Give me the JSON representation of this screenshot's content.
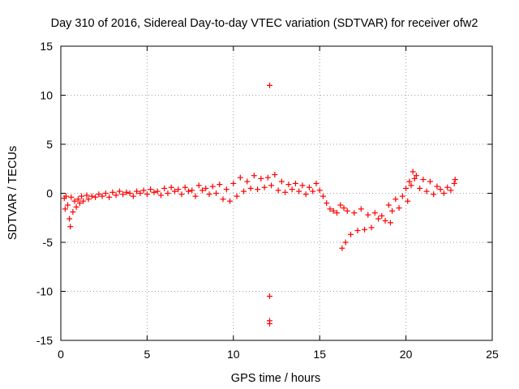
{
  "chart_data": {
    "type": "scatter",
    "title": "Day 310 of 2016, Sidereal Day-to-day VTEC variation (SDTVAR) for receiver ofw2",
    "xlabel": "GPS time / hours",
    "ylabel": "SDTVAR / TECUs",
    "xlim": [
      0,
      25
    ],
    "ylim": [
      -15,
      15
    ],
    "xticks": [
      "0",
      "5",
      "10",
      "15",
      "20",
      "25"
    ],
    "yticks": [
      "-15",
      "-10",
      "-5",
      "0",
      "5",
      "10",
      "15"
    ],
    "grid": true,
    "marker": "+",
    "series": [
      {
        "name": "SDTVAR",
        "color": "#ff0000",
        "points": [
          [
            0.2,
            -0.5
          ],
          [
            0.25,
            -1.6
          ],
          [
            0.3,
            -0.3
          ],
          [
            0.4,
            -1.2
          ],
          [
            0.5,
            -2.6
          ],
          [
            0.55,
            -3.4
          ],
          [
            0.6,
            -0.4
          ],
          [
            0.7,
            -1.9
          ],
          [
            0.8,
            -0.8
          ],
          [
            0.9,
            -1.4
          ],
          [
            1.0,
            -0.6
          ],
          [
            1.1,
            -1.0
          ],
          [
            1.2,
            -0.3
          ],
          [
            1.3,
            -0.8
          ],
          [
            1.5,
            -0.2
          ],
          [
            1.6,
            -0.6
          ],
          [
            1.8,
            -0.3
          ],
          [
            2.0,
            -0.4
          ],
          [
            2.2,
            -0.1
          ],
          [
            2.4,
            -0.3
          ],
          [
            2.6,
            0.0
          ],
          [
            2.8,
            -0.4
          ],
          [
            3.0,
            0.1
          ],
          [
            3.2,
            -0.2
          ],
          [
            3.4,
            0.2
          ],
          [
            3.6,
            -0.1
          ],
          [
            3.8,
            0.1
          ],
          [
            4.0,
            0.0
          ],
          [
            4.2,
            -0.3
          ],
          [
            4.4,
            0.2
          ],
          [
            4.6,
            0.0
          ],
          [
            4.8,
            0.3
          ],
          [
            5.0,
            -0.1
          ],
          [
            5.2,
            0.4
          ],
          [
            5.4,
            0.1
          ],
          [
            5.6,
            0.2
          ],
          [
            5.8,
            -0.2
          ],
          [
            6.0,
            0.5
          ],
          [
            6.2,
            0.0
          ],
          [
            6.4,
            0.6
          ],
          [
            6.6,
            0.2
          ],
          [
            6.8,
            0.4
          ],
          [
            7.0,
            -0.1
          ],
          [
            7.2,
            0.6
          ],
          [
            7.4,
            0.2
          ],
          [
            7.6,
            0.3
          ],
          [
            7.8,
            -0.3
          ],
          [
            8.0,
            0.8
          ],
          [
            8.2,
            0.3
          ],
          [
            8.4,
            0.5
          ],
          [
            8.6,
            -0.1
          ],
          [
            8.8,
            0.7
          ],
          [
            9.0,
            0.0
          ],
          [
            9.2,
            0.9
          ],
          [
            9.4,
            -0.6
          ],
          [
            9.6,
            0.4
          ],
          [
            9.8,
            -0.8
          ],
          [
            10.0,
            1.0
          ],
          [
            10.2,
            -0.3
          ],
          [
            10.4,
            1.6
          ],
          [
            10.6,
            0.2
          ],
          [
            10.8,
            1.2
          ],
          [
            11.0,
            0.5
          ],
          [
            11.2,
            1.8
          ],
          [
            11.4,
            0.4
          ],
          [
            11.6,
            1.5
          ],
          [
            11.8,
            0.6
          ],
          [
            12.0,
            1.6
          ],
          [
            12.1,
            11.0
          ],
          [
            12.1,
            -10.5
          ],
          [
            12.1,
            -13.0
          ],
          [
            12.1,
            -13.3
          ],
          [
            12.2,
            0.8
          ],
          [
            12.4,
            1.9
          ],
          [
            12.6,
            0.3
          ],
          [
            12.8,
            1.2
          ],
          [
            13.0,
            0.1
          ],
          [
            13.2,
            0.9
          ],
          [
            13.4,
            0.4
          ],
          [
            13.6,
            1.0
          ],
          [
            13.8,
            0.2
          ],
          [
            14.0,
            0.8
          ],
          [
            14.2,
            -0.1
          ],
          [
            14.4,
            0.6
          ],
          [
            14.6,
            0.2
          ],
          [
            14.8,
            1.0
          ],
          [
            15.0,
            0.3
          ],
          [
            15.2,
            -0.3
          ],
          [
            15.4,
            -1.0
          ],
          [
            15.6,
            -1.6
          ],
          [
            15.8,
            -1.8
          ],
          [
            16.0,
            -2.0
          ],
          [
            16.2,
            -1.2
          ],
          [
            16.3,
            -5.6
          ],
          [
            16.4,
            -1.5
          ],
          [
            16.5,
            -5.0
          ],
          [
            16.6,
            -1.8
          ],
          [
            16.8,
            -4.2
          ],
          [
            17.0,
            -2.0
          ],
          [
            17.2,
            -3.8
          ],
          [
            17.4,
            -1.6
          ],
          [
            17.6,
            -3.7
          ],
          [
            17.8,
            -2.2
          ],
          [
            18.0,
            -3.5
          ],
          [
            18.2,
            -2.0
          ],
          [
            18.4,
            -2.6
          ],
          [
            18.6,
            -2.3
          ],
          [
            18.8,
            -2.8
          ],
          [
            19.0,
            -1.2
          ],
          [
            19.1,
            -3.0
          ],
          [
            19.2,
            -1.8
          ],
          [
            19.4,
            -0.6
          ],
          [
            19.6,
            -1.5
          ],
          [
            19.8,
            -0.3
          ],
          [
            20.0,
            0.5
          ],
          [
            20.1,
            -0.8
          ],
          [
            20.2,
            1.2
          ],
          [
            20.3,
            0.8
          ],
          [
            20.4,
            2.2
          ],
          [
            20.5,
            1.5
          ],
          [
            20.6,
            1.8
          ],
          [
            20.8,
            0.5
          ],
          [
            21.0,
            1.4
          ],
          [
            21.2,
            0.2
          ],
          [
            21.4,
            1.2
          ],
          [
            21.6,
            -0.1
          ],
          [
            21.8,
            0.7
          ],
          [
            22.0,
            0.4
          ],
          [
            22.2,
            0.0
          ],
          [
            22.4,
            0.6
          ],
          [
            22.6,
            0.3
          ],
          [
            22.8,
            1.0
          ],
          [
            22.85,
            1.4
          ]
        ]
      }
    ]
  }
}
